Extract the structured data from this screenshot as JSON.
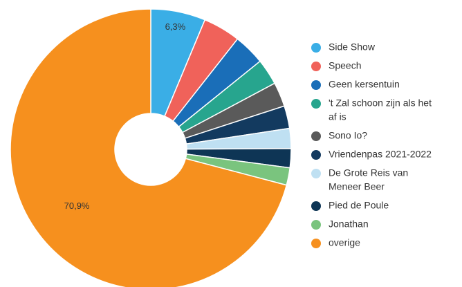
{
  "chart_data": {
    "type": "pie",
    "donut": true,
    "legend_position": "right",
    "start": "top",
    "direction": "clockwise",
    "slices": [
      {
        "label": "Side Show",
        "value": 6.3,
        "color": "#3aaee6",
        "value_label": "6,3%"
      },
      {
        "label": "Speech",
        "value": 4.3,
        "color": "#f0625a",
        "value_label": ""
      },
      {
        "label": "Geen kersentuin",
        "value": 3.6,
        "color": "#1a6eb8",
        "value_label": ""
      },
      {
        "label": "'t Zal schoon zijn als het af is",
        "value": 3.0,
        "color": "#27a58e",
        "value_label": ""
      },
      {
        "label": "Sono Io?",
        "value": 2.8,
        "color": "#5a5a5a",
        "value_label": ""
      },
      {
        "label": "Vriendenpas 2021-2022",
        "value": 2.6,
        "color": "#133a5f",
        "value_label": ""
      },
      {
        "label": "De Grote Reis van Meneer Beer",
        "value": 2.3,
        "color": "#bfe0f2",
        "value_label": ""
      },
      {
        "label": "Pied de Poule",
        "value": 2.2,
        "color": "#0e3555",
        "value_label": ""
      },
      {
        "label": "Jonathan",
        "value": 2.0,
        "color": "#7ac47e",
        "value_label": ""
      },
      {
        "label": "overige",
        "value": 70.9,
        "color": "#f6901e",
        "value_label": "70,9%"
      }
    ],
    "legend": [
      {
        "lines": [
          "Side Show"
        ]
      },
      {
        "lines": [
          "Speech"
        ]
      },
      {
        "lines": [
          "Geen kersentuin"
        ]
      },
      {
        "lines": [
          "'t Zal schoon zijn als het",
          "af is"
        ]
      },
      {
        "lines": [
          "Sono Io?"
        ]
      },
      {
        "lines": [
          "Vriendenpas 2021-2022"
        ]
      },
      {
        "lines": [
          "De Grote Reis van",
          "Meneer Beer"
        ]
      },
      {
        "lines": [
          "Pied de Poule"
        ]
      },
      {
        "lines": [
          "Jonathan"
        ]
      },
      {
        "lines": [
          "overige"
        ]
      }
    ]
  }
}
